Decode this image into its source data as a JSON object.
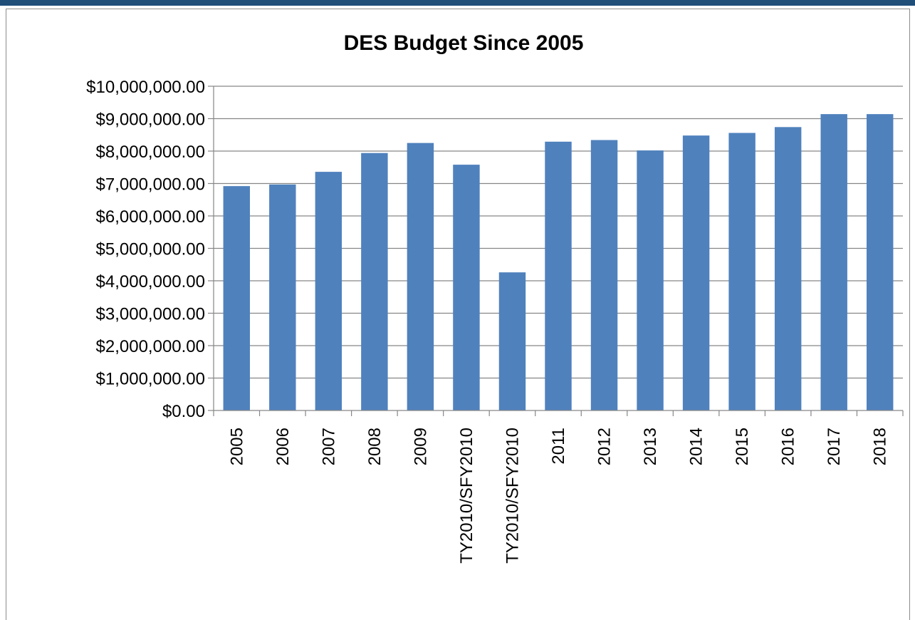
{
  "chart_data": {
    "type": "bar",
    "title": "DES Budget Since 2005",
    "xlabel": "",
    "ylabel": "",
    "categories": [
      "2005",
      "2006",
      "2007",
      "2008",
      "2009",
      "TY2010/SFY2010",
      "TY2010/SFY2010",
      "2011",
      "2012",
      "2013",
      "2014",
      "2015",
      "2016",
      "2017",
      "2018"
    ],
    "values": [
      6920000,
      6970000,
      7360000,
      7940000,
      8250000,
      7580000,
      4260000,
      8290000,
      8340000,
      8020000,
      8480000,
      8560000,
      8740000,
      9140000,
      9140000
    ],
    "ylim": [
      0,
      10000000
    ],
    "y_ticks": [
      0,
      1000000,
      2000000,
      3000000,
      4000000,
      5000000,
      6000000,
      7000000,
      8000000,
      9000000,
      10000000
    ],
    "y_tick_labels": [
      "$0.00",
      "$1,000,000.00",
      "$2,000,000.00",
      "$3,000,000.00",
      "$4,000,000.00",
      "$5,000,000.00",
      "$6,000,000.00",
      "$7,000,000.00",
      "$8,000,000.00",
      "$9,000,000.00",
      "$10,000,000.00"
    ],
    "grid": true,
    "legend": "none",
    "bar_color": "#4f81bd"
  }
}
